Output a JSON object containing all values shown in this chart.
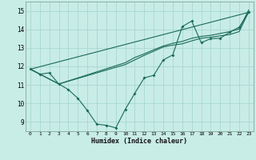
{
  "xlabel": "Humidex (Indice chaleur)",
  "xlim": [
    -0.5,
    23.5
  ],
  "ylim": [
    8.5,
    15.5
  ],
  "yticks": [
    9,
    10,
    11,
    12,
    13,
    14,
    15
  ],
  "xticks": [
    0,
    1,
    2,
    3,
    4,
    5,
    6,
    7,
    8,
    9,
    10,
    11,
    12,
    13,
    14,
    15,
    16,
    17,
    18,
    19,
    20,
    21,
    22,
    23
  ],
  "background_color": "#c8ece6",
  "grid_color": "#a0d4cc",
  "line_color": "#1a6b5a",
  "line1_x": [
    0,
    1,
    2,
    3,
    4,
    5,
    6,
    7,
    8,
    9,
    10,
    11,
    12,
    13,
    14,
    15,
    16,
    17,
    18,
    19,
    20,
    21,
    22,
    23
  ],
  "line1_y": [
    11.85,
    11.58,
    11.65,
    11.05,
    10.75,
    10.28,
    9.62,
    8.88,
    8.82,
    8.68,
    9.68,
    10.55,
    11.38,
    11.52,
    12.35,
    12.62,
    14.15,
    14.45,
    13.28,
    13.5,
    13.52,
    13.85,
    14.12,
    14.92
  ],
  "line2_x": [
    0,
    23
  ],
  "line2_y": [
    11.85,
    14.92
  ],
  "line3_x": [
    0,
    3,
    10,
    11,
    12,
    13,
    14,
    15,
    16,
    17,
    18,
    19,
    20,
    21,
    22,
    23
  ],
  "line3_y": [
    11.85,
    11.05,
    12.1,
    12.35,
    12.6,
    12.82,
    13.05,
    13.15,
    13.22,
    13.38,
    13.52,
    13.58,
    13.65,
    13.72,
    13.88,
    14.95
  ],
  "line4_x": [
    0,
    3,
    10,
    11,
    12,
    13,
    14,
    15,
    16,
    17,
    18,
    19,
    20,
    21,
    22,
    23
  ],
  "line4_y": [
    11.85,
    11.05,
    12.2,
    12.48,
    12.68,
    12.9,
    13.1,
    13.25,
    13.35,
    13.52,
    13.62,
    13.68,
    13.78,
    13.88,
    14.02,
    15.05
  ]
}
